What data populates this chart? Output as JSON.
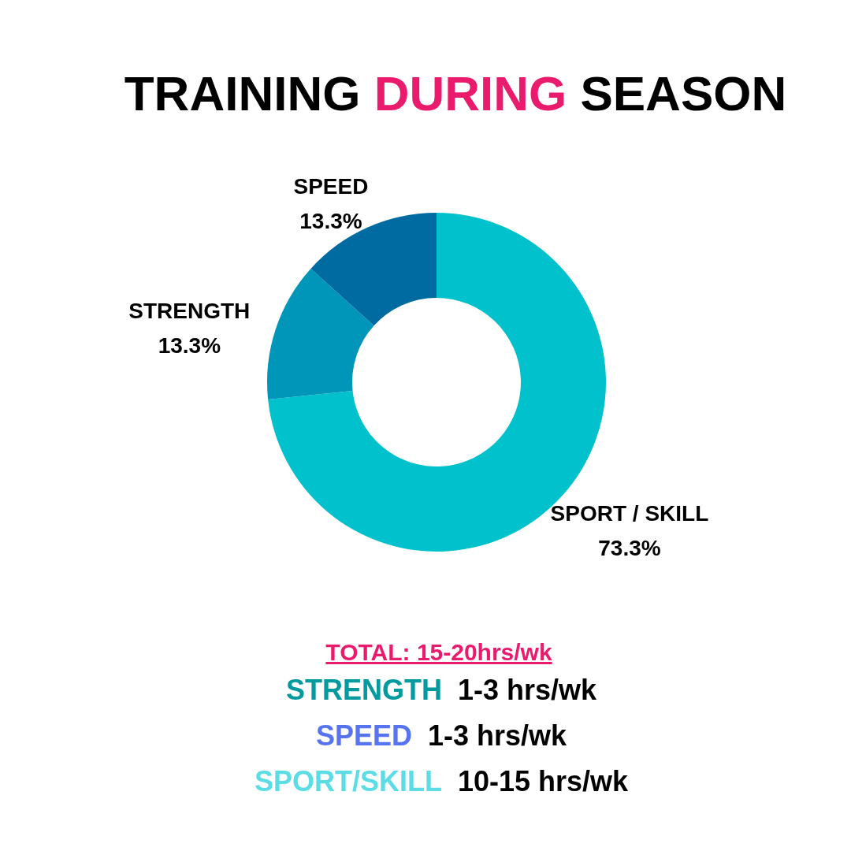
{
  "chart_data": {
    "type": "donut",
    "title": "TRAINING DURING SEASON",
    "categories": [
      "SPORT / SKILL",
      "STRENGTH",
      "SPEED"
    ],
    "values": [
      73.3,
      13.3,
      13.3
    ],
    "value_labels": [
      "73.3%",
      "13.3%",
      "13.3%"
    ],
    "colors": [
      "#00c1cc",
      "#0096b9",
      "#006ba0"
    ],
    "annotations": [
      "TOTAL: 15-20hrs/wk",
      "STRENGTH  1-3 hrs/wk",
      "SPEED  1-3 hrs/wk",
      "SPORT/SKILL  10-15 hrs/wk"
    ]
  }
}
